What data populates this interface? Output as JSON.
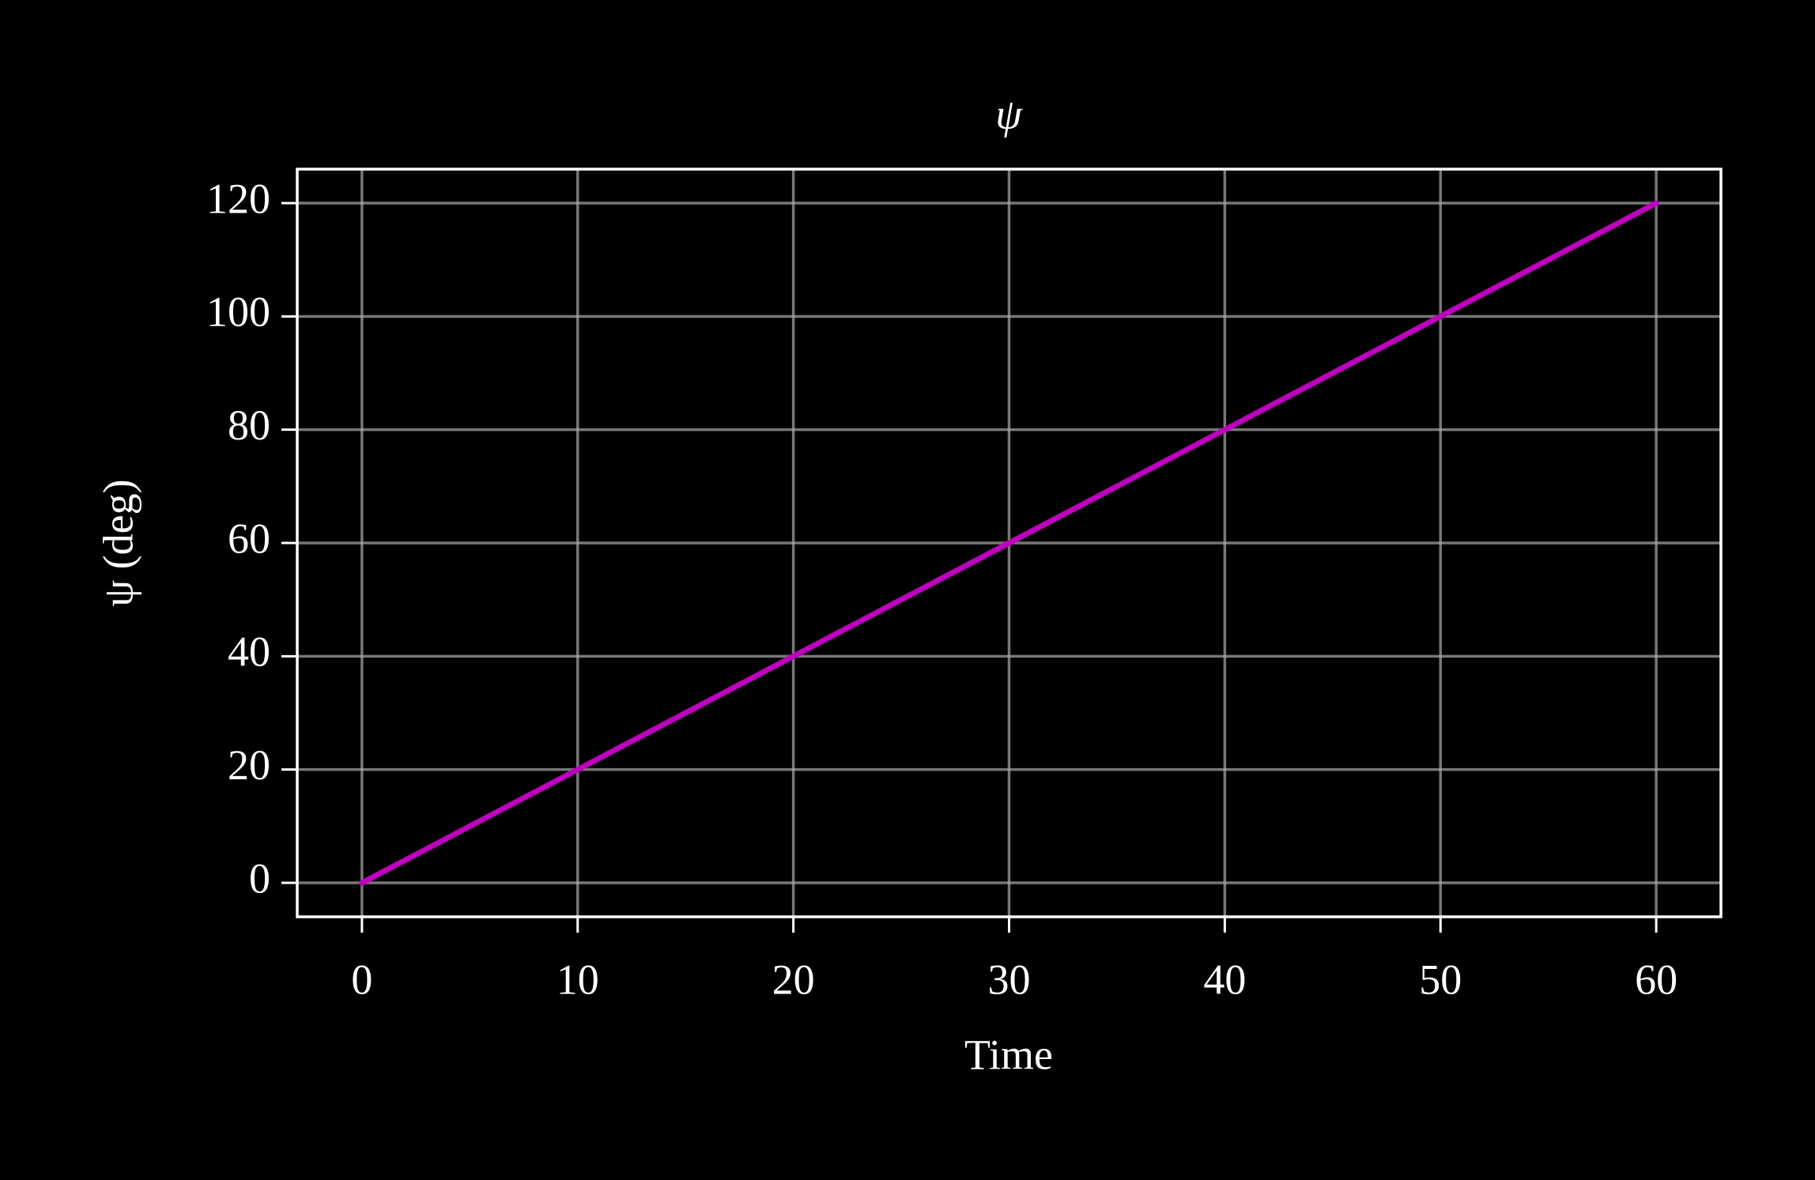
{
  "chart_data": {
    "type": "line",
    "title": "ψ",
    "xlabel": "Time",
    "ylabel": "ψ (deg)",
    "x": [
      0,
      10,
      20,
      30,
      40,
      50,
      60
    ],
    "series": [
      {
        "name": "ψ",
        "color": "#bf00bf",
        "values": [
          0,
          20,
          40,
          60,
          80,
          100,
          120
        ]
      }
    ],
    "xlim": [
      -3,
      63
    ],
    "ylim": [
      -6,
      126
    ],
    "xticks": [
      0,
      10,
      20,
      30,
      40,
      50,
      60
    ],
    "yticks": [
      0,
      20,
      40,
      60,
      80,
      100,
      120
    ],
    "grid": true
  }
}
